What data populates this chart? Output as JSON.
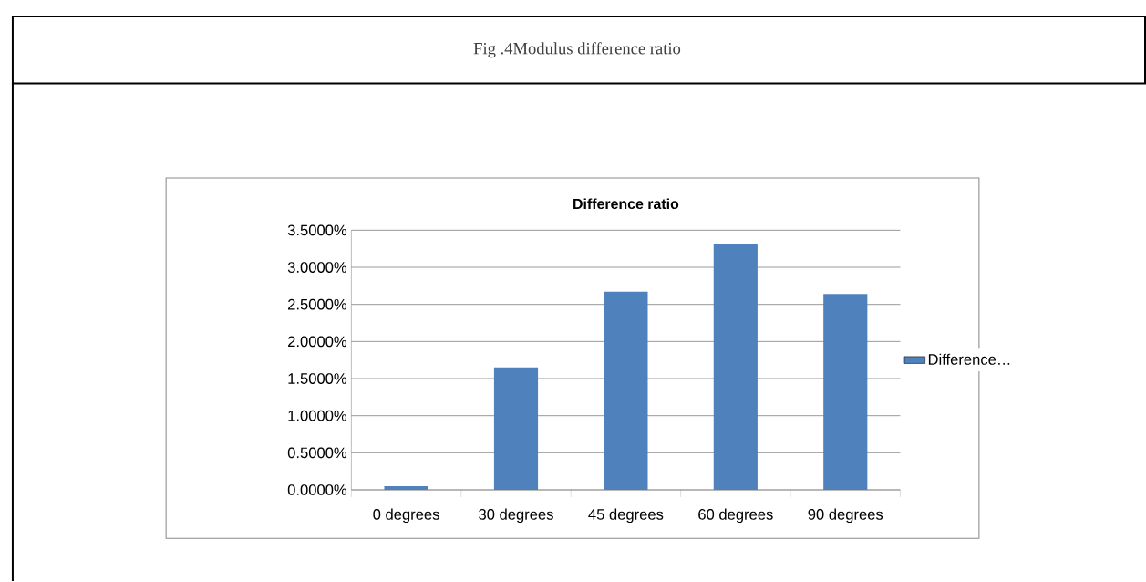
{
  "chart_data": {
    "type": "bar",
    "title": "Difference ratio",
    "annotations": [
      "Fig .4Modulus difference ratio"
    ],
    "categories": [
      "0 degrees",
      "30 degrees",
      "45 degrees",
      "60 degrees",
      "90 degrees"
    ],
    "series": [
      {
        "name": "Difference…",
        "color": "#4f81bd",
        "values": [
          0.05,
          1.65,
          2.67,
          3.31,
          2.64
        ]
      }
    ],
    "ylim": [
      0,
      3.5
    ],
    "yticks": [
      {
        "value": 0,
        "label": "0.0000%"
      },
      {
        "value": 0.5,
        "label": "0.5000%"
      },
      {
        "value": 1,
        "label": "1.0000%"
      },
      {
        "value": 1.5,
        "label": "1.5000%"
      },
      {
        "value": 2,
        "label": "2.0000%"
      },
      {
        "value": 2.5,
        "label": "2.5000%"
      },
      {
        "value": 3,
        "label": "3.0000%"
      },
      {
        "value": 3.5,
        "label": "3.5000%"
      }
    ],
    "grid": "y",
    "legend": "right"
  }
}
